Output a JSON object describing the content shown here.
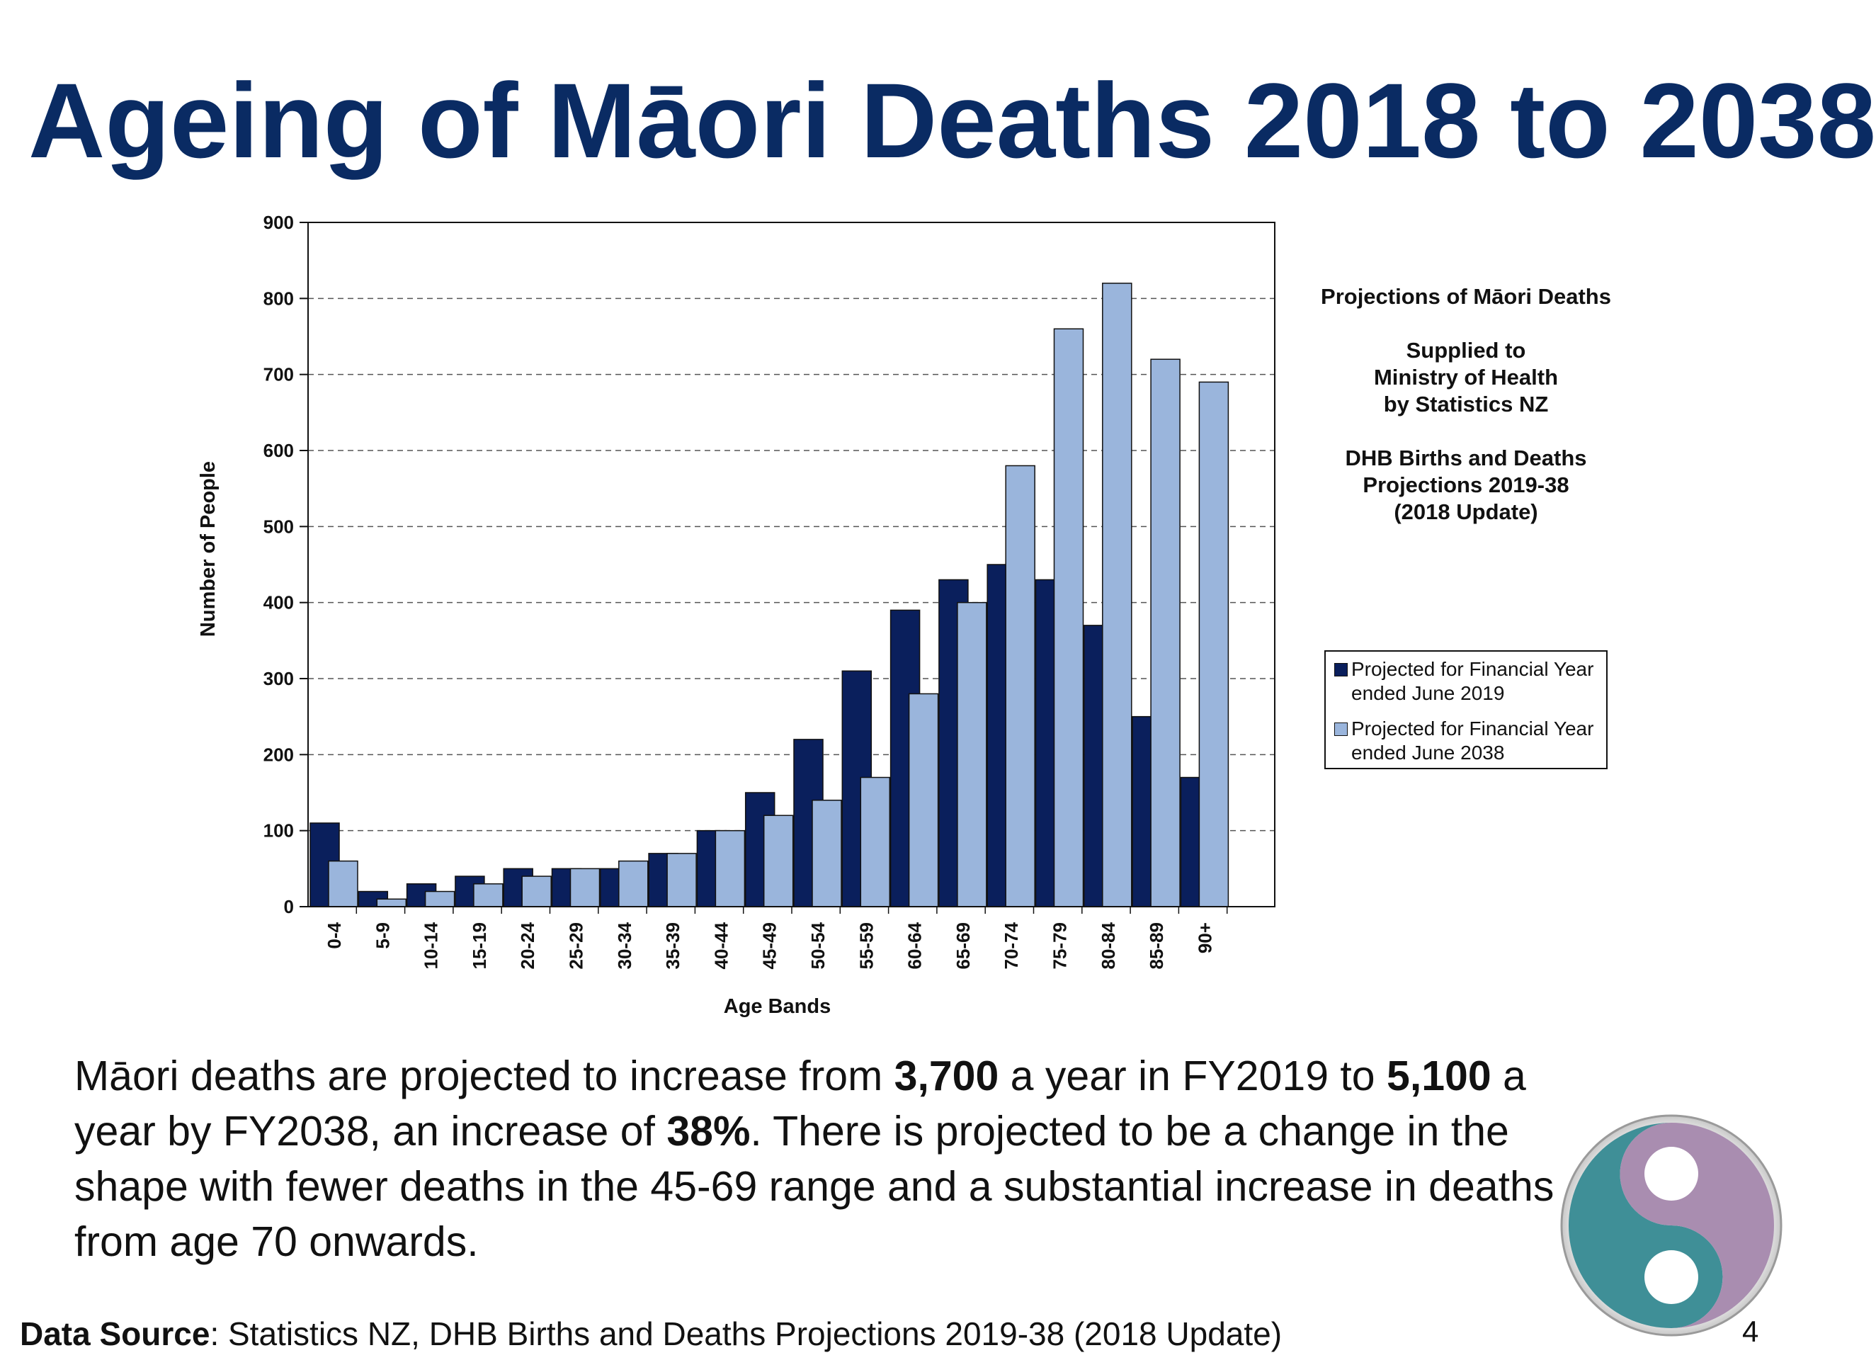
{
  "slide": {
    "title": "Ageing of Māori Deaths 2018 to 2038",
    "page_number": "4"
  },
  "side_note": {
    "line1": "Projections of Māori Deaths",
    "line2": "Supplied to\nMinistry of Health\nby Statistics NZ",
    "line3": "DHB Births and Deaths\nProjections 2019-38\n(2018 Update)"
  },
  "body": {
    "t1": "Māori deaths are projected to increase from ",
    "b1": "3,700",
    "t2": " a year in FY2019 to ",
    "b2": "5,100",
    "t3": " a year by FY2038, an increase of ",
    "b3": "38%",
    "t4": ". There is projected to be a change in the shape with fewer deaths in the 45-69 range and a substantial increase in deaths from age 70 onwards."
  },
  "source": {
    "label": "Data Source",
    "text": ": Statistics NZ, DHB Births and Deaths Projections 2019-38 (2018 Update)"
  },
  "colors": {
    "series_2019": "#0a1f5c",
    "series_2038": "#9ab5dc",
    "title": "#0a2b63"
  },
  "chart_data": {
    "type": "bar",
    "title": "",
    "xlabel": "Age Bands",
    "ylabel": "Number of People",
    "ylim": [
      0,
      900
    ],
    "yticks": [
      0,
      100,
      200,
      300,
      400,
      500,
      600,
      700,
      800,
      900
    ],
    "grid": "horizontal dashed",
    "legend_position": "right",
    "categories": [
      "0-4",
      "5-9",
      "10-14",
      "15-19",
      "20-24",
      "25-29",
      "30-34",
      "35-39",
      "40-44",
      "45-49",
      "50-54",
      "55-59",
      "60-64",
      "65-69",
      "70-74",
      "75-79",
      "80-84",
      "85-89",
      "90+"
    ],
    "series": [
      {
        "name": "Projected for Financial Year\nended June 2019",
        "color": "#0a1f5c",
        "values": [
          110,
          20,
          30,
          40,
          50,
          50,
          50,
          70,
          100,
          150,
          220,
          310,
          390,
          430,
          450,
          430,
          370,
          250,
          170
        ]
      },
      {
        "name": "Projected for Financial Year\nended June 2038",
        "color": "#9ab5dc",
        "values": [
          60,
          10,
          20,
          30,
          40,
          50,
          60,
          70,
          100,
          120,
          140,
          170,
          280,
          400,
          580,
          760,
          820,
          720,
          690
        ]
      }
    ]
  }
}
